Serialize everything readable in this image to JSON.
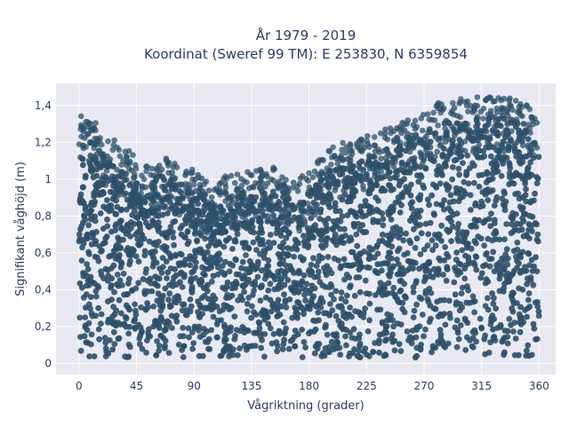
{
  "chart_data": {
    "type": "scatter",
    "title_line1": "År 1979 - 2019",
    "title_line2": "Koordinat (Sweref 99 TM): E 253830, N 6359854",
    "xlabel": "Vågriktning (grader)",
    "ylabel": "Signifikant våghöjd (m)",
    "xlim": [
      -18,
      373
    ],
    "ylim": [
      -0.06,
      1.52
    ],
    "xticks": [
      0,
      45,
      90,
      135,
      180,
      225,
      270,
      315,
      360
    ],
    "xtick_labels": [
      "0",
      "45",
      "90",
      "135",
      "180",
      "225",
      "270",
      "315",
      "360"
    ],
    "yticks": [
      0,
      0.2,
      0.4,
      0.6,
      0.8,
      1,
      1.2,
      1.4
    ],
    "ytick_labels": [
      "0",
      "0,2",
      "0,4",
      "0,6",
      "0,8",
      "1",
      "1,2",
      "1,4"
    ],
    "grid": true,
    "marker_color": "#2e5069",
    "plot_bg": "#e8e9f1",
    "upper_envelope": {
      "x": [
        0,
        10,
        20,
        30,
        40,
        50,
        60,
        70,
        80,
        90,
        100,
        110,
        120,
        130,
        140,
        150,
        160,
        170,
        180,
        190,
        200,
        210,
        220,
        230,
        240,
        250,
        260,
        270,
        280,
        290,
        300,
        310,
        320,
        330,
        340,
        350,
        360
      ],
      "y": [
        1.37,
        1.33,
        1.25,
        1.2,
        1.15,
        1.08,
        1.12,
        1.12,
        1.1,
        1.05,
        1.0,
        1.0,
        1.05,
        1.05,
        1.05,
        1.07,
        1.05,
        1.0,
        1.05,
        1.12,
        1.2,
        1.2,
        1.22,
        1.25,
        1.28,
        1.32,
        1.35,
        1.38,
        1.42,
        1.43,
        1.44,
        1.45,
        1.45,
        1.45,
        1.44,
        1.43,
        1.3
      ]
    }
  }
}
